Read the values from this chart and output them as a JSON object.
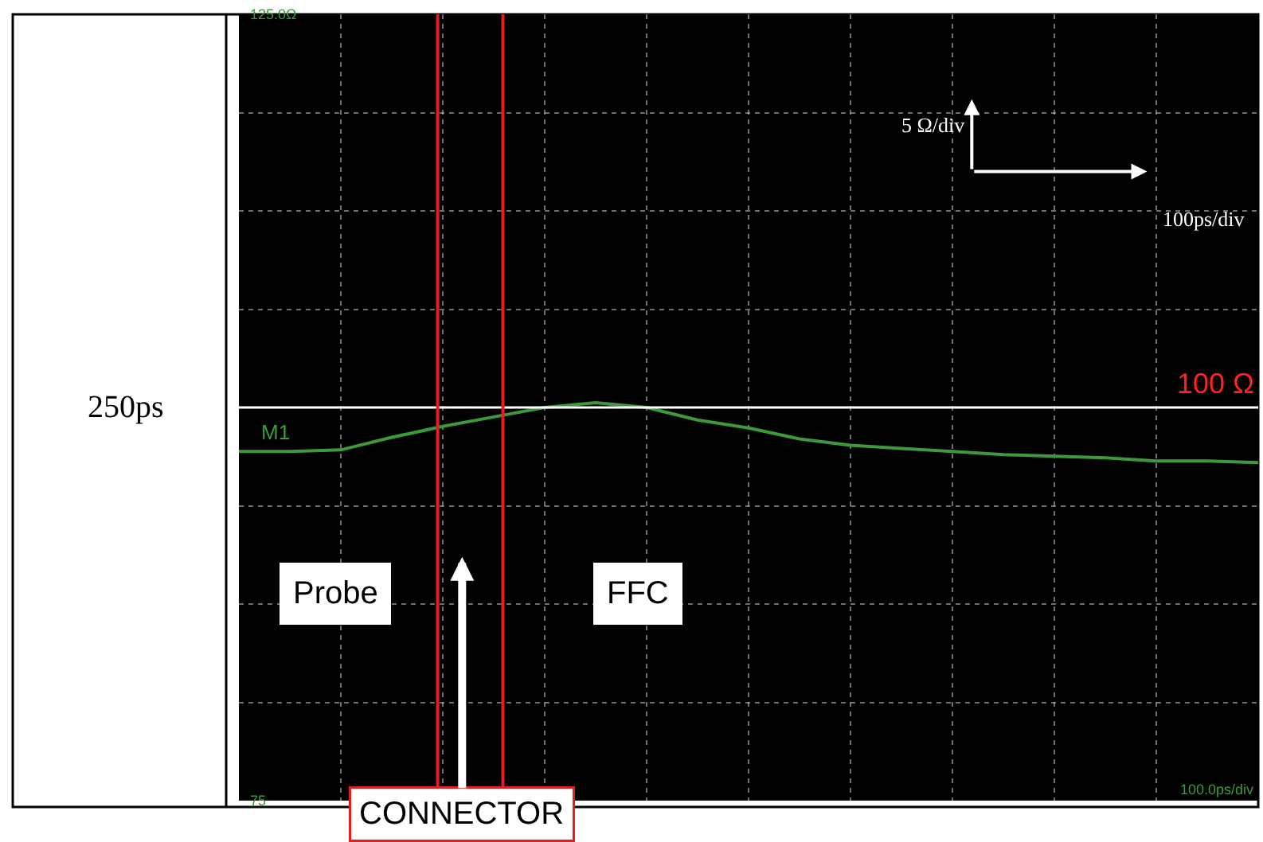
{
  "chart_data": {
    "type": "line",
    "categories": [
      null,
      null,
      null,
      null,
      null,
      null,
      null,
      null,
      null,
      null,
      null,
      null,
      null,
      null,
      null,
      null,
      null,
      null,
      null,
      null,
      null
    ],
    "series": [
      {
        "name": "M1",
        "color": "#3c9a3c",
        "values": [
          97.2,
          97.2,
          97.3,
          98.1,
          98.8,
          99.4,
          100.0,
          100.3,
          100.0,
          99.2,
          98.7,
          98.0,
          97.6,
          97.4,
          97.2,
          97.0,
          96.9,
          96.8,
          96.6,
          96.6,
          96.5
        ]
      }
    ],
    "ylim": [
      75,
      125
    ],
    "yticks": [
      {
        "value": 75,
        "label": "75"
      },
      {
        "value": 81.25,
        "label": null
      },
      {
        "value": 87.5,
        "label": null
      },
      {
        "value": 93.75,
        "label": null
      },
      {
        "value": 100,
        "label": null
      },
      {
        "value": 106.25,
        "label": null
      },
      {
        "value": 112.5,
        "label": null
      },
      {
        "value": 118.75,
        "label": null
      },
      {
        "value": 125,
        "label": "125.0Ω"
      }
    ],
    "tick_labels": "y",
    "grid": true,
    "legend": false,
    "marker": "none",
    "line_style": "solid",
    "ref_lines": [
      {
        "axis": "y",
        "value": 100,
        "label": "100 Ω",
        "color": "#ffffff"
      }
    ],
    "annotations": [
      "Probe",
      "FFC",
      "CONNECTOR",
      "250ps",
      "5 Ω/div",
      "100ps/div",
      "100.0ps/div"
    ]
  }
}
